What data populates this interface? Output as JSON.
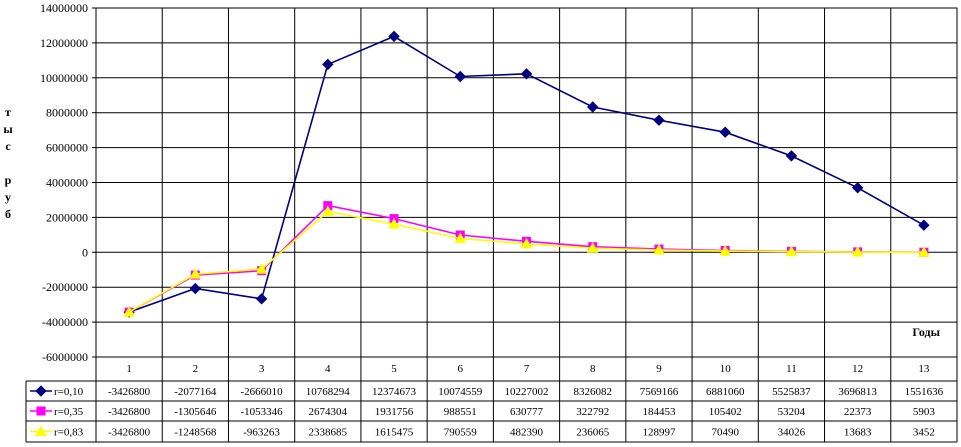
{
  "chart_data": {
    "type": "line",
    "title": "",
    "xlabel": "Годы",
    "ylabel": [
      "т",
      "ы",
      "с",
      "",
      "р",
      "у",
      "б"
    ],
    "ylim": [
      -6000000,
      14000000
    ],
    "yticks": [
      "14000000",
      "12000000",
      "10000000",
      "8000000",
      "6000000",
      "4000000",
      "2000000",
      "0",
      "-2000000",
      "-4000000",
      "-6000000"
    ],
    "categories": [
      "1",
      "2",
      "3",
      "4",
      "5",
      "6",
      "7",
      "8",
      "9",
      "10",
      "11",
      "12",
      "13"
    ],
    "grid": true,
    "legend": "data-table-left",
    "series": [
      {
        "name": "r=0,10",
        "color": "#000080",
        "marker": "diamond",
        "values": [
          -3426800,
          -2077164,
          -2666010,
          10768294,
          12374673,
          10074559,
          10227002,
          8326082,
          7569166,
          6881060,
          5525837,
          3696813,
          1551636
        ],
        "labels": [
          "-3426800",
          "-2077164",
          "-2666010",
          "10768294",
          "12374673",
          "10074559",
          "10227002",
          "8326082",
          "7569166",
          "6881060",
          "5525837",
          "3696813",
          "1551636"
        ]
      },
      {
        "name": "r=0,35",
        "color": "#ff00ff",
        "marker": "square",
        "values": [
          -3426800,
          -1305646,
          -1053346,
          2674304,
          1931756,
          988551,
          630777,
          322792,
          184453,
          105402,
          53204,
          22373,
          5903
        ],
        "labels": [
          "-3426800",
          "-1305646",
          "-1053346",
          "2674304",
          "1931756",
          "988551",
          "630777",
          "322792",
          "184453",
          "105402",
          "53204",
          "22373",
          "5903"
        ]
      },
      {
        "name": "r=0,83",
        "color": "#ffff00",
        "marker": "triangle",
        "values": [
          -3426800,
          -1248568,
          -963263,
          2338685,
          1615475,
          790559,
          482390,
          236065,
          128997,
          70490,
          34026,
          13683,
          3452
        ],
        "labels": [
          "-3426800",
          "-1248568",
          "-963263",
          "2338685",
          "1615475",
          "790559",
          "482390",
          "236065",
          "128997",
          "70490",
          "34026",
          "13683",
          "3452"
        ]
      }
    ]
  }
}
